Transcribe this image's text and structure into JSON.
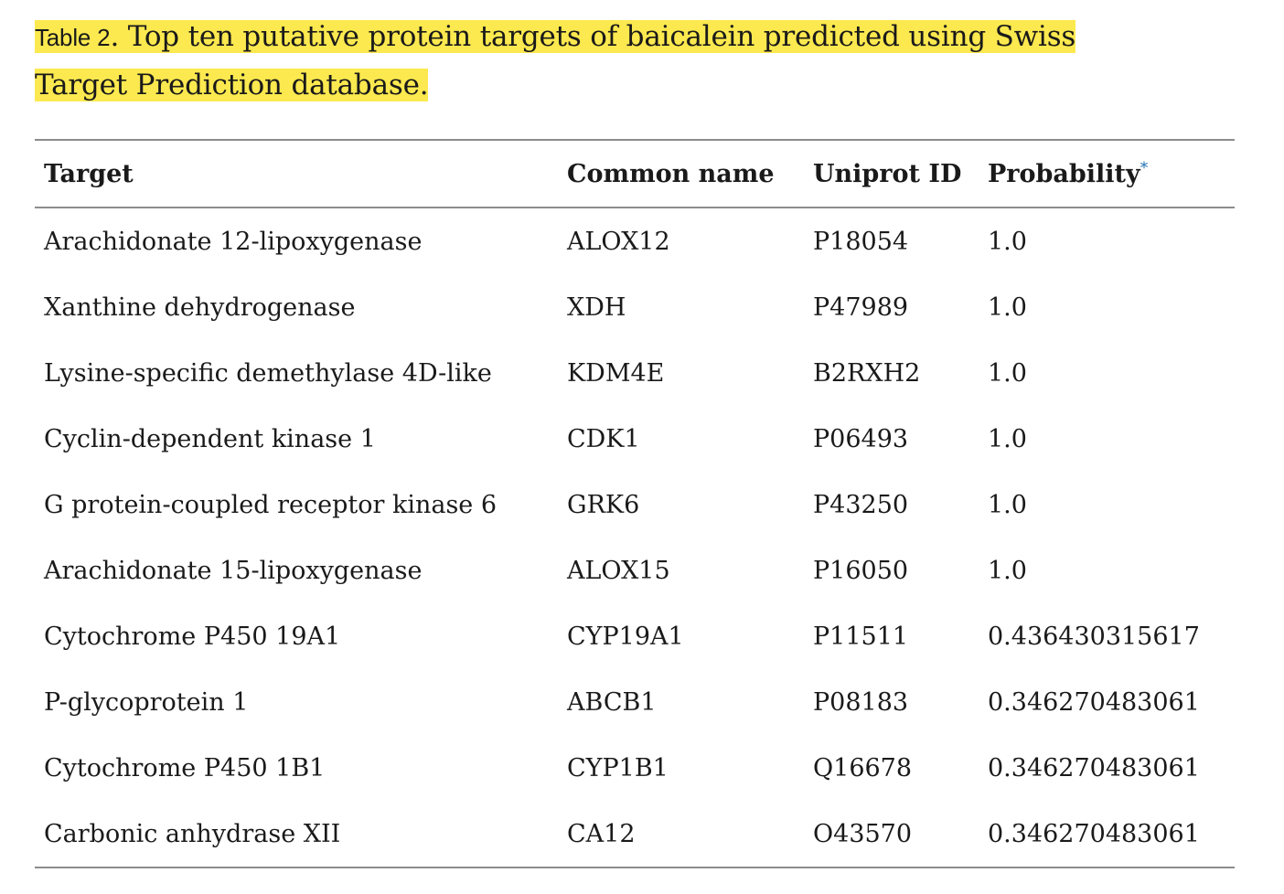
{
  "caption": {
    "label": "Table 2",
    "text": ". Top ten putative protein targets of baicalein predicted using Swiss Target Prediction database."
  },
  "table": {
    "headers": {
      "target": "Target",
      "common_name": "Common name",
      "uniprot_id": "Uniprot ID",
      "probability": "Probability",
      "probability_footnote": "*"
    },
    "rows": [
      {
        "target": "Arachidonate 12-lipoxygenase",
        "common_name": "ALOX12",
        "uniprot_id": "P18054",
        "probability": "1.0"
      },
      {
        "target": "Xanthine dehydrogenase",
        "common_name": "XDH",
        "uniprot_id": "P47989",
        "probability": "1.0"
      },
      {
        "target": "Lysine-specific demethylase 4D-like",
        "common_name": "KDM4E",
        "uniprot_id": "B2RXH2",
        "probability": "1.0"
      },
      {
        "target": "Cyclin-dependent kinase 1",
        "common_name": "CDK1",
        "uniprot_id": "P06493",
        "probability": "1.0"
      },
      {
        "target": "G protein-coupled receptor kinase 6",
        "common_name": "GRK6",
        "uniprot_id": "P43250",
        "probability": "1.0"
      },
      {
        "target": "Arachidonate 15-lipoxygenase",
        "common_name": "ALOX15",
        "uniprot_id": "P16050",
        "probability": "1.0"
      },
      {
        "target": "Cytochrome P450 19A1",
        "common_name": "CYP19A1",
        "uniprot_id": "P11511",
        "probability": "0.436430315617"
      },
      {
        "target": "P-glycoprotein 1",
        "common_name": "ABCB1",
        "uniprot_id": "P08183",
        "probability": "0.346270483061"
      },
      {
        "target": "Cytochrome P450 1B1",
        "common_name": "CYP1B1",
        "uniprot_id": "Q16678",
        "probability": "0.346270483061"
      },
      {
        "target": "Carbonic anhydrase XII",
        "common_name": "CA12",
        "uniprot_id": "O43570",
        "probability": "0.346270483061"
      }
    ]
  },
  "colors": {
    "highlight": "#fce94f",
    "rule": "#8c8c8c",
    "footnote_link": "#1f6fb2"
  }
}
